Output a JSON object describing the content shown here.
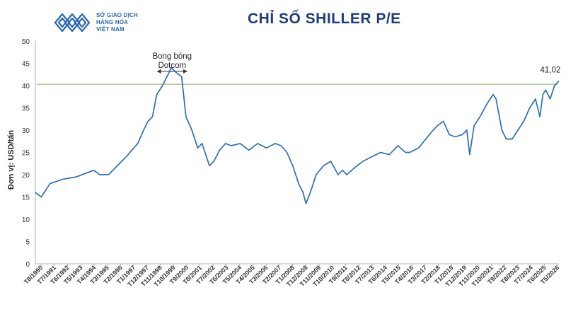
{
  "logo": {
    "line1": "SỞ GIAO DỊCH",
    "line2": "HÀNG HÓA",
    "line3": "VIỆT NAM"
  },
  "colors": {
    "line": "#2e6fb5",
    "reference": "#9dbb7a",
    "title": "#1f3d7a",
    "logo": "#2a67b1"
  },
  "chart_data": {
    "type": "line",
    "title": "CHỈ SỐ SHILLER P/E",
    "ylabel": "Đơn vị: USD/tấn",
    "xlabel": "",
    "ylim": [
      0,
      50
    ],
    "yticks": [
      0,
      5,
      10,
      15,
      20,
      25,
      30,
      35,
      40,
      45,
      50
    ],
    "grid": false,
    "x_tick_labels": [
      "T8/1990",
      "T7/1991",
      "T6/1992",
      "T5/1993",
      "T4/1994",
      "T3/1995",
      "T2/1996",
      "T1/1997",
      "T12/1997",
      "T11/1998",
      "T10/1999",
      "T9/2000",
      "T8/2001",
      "T7/2002",
      "T6/2003",
      "T5/2004",
      "T4/2005",
      "T3/2006",
      "T2/2007",
      "T1/2008",
      "T12/2008",
      "T11/2009",
      "T10/2010",
      "T9/2011",
      "T8/2012",
      "T7/2013",
      "T6/2014",
      "T5/2015",
      "T4/2016",
      "T3/2017",
      "T2/2018",
      "T1/2019",
      "T12/2019",
      "T11/2020",
      "T10/2021",
      "T9/2022",
      "T8/2023",
      "T7/2024",
      "T6/2025",
      "T5/2026"
    ],
    "series": [
      {
        "x": [
          1990.6,
          1991.0,
          1991.6,
          1992.5,
          1993.4,
          1994.2,
          1994.6,
          1995.0,
          1995.6,
          1996.2,
          1996.8,
          1997.2,
          1997.6,
          1998.0,
          1998.3,
          1998.6,
          1998.9,
          1999.3,
          1999.6,
          1999.9,
          2000.2,
          2000.6,
          2000.9,
          2001.3,
          2001.7,
          2002.0,
          2002.5,
          2002.8,
          2003.2,
          2003.6,
          2004.0,
          2004.6,
          2005.2,
          2005.8,
          2006.4,
          2007.0,
          2007.4,
          2007.8,
          2008.2,
          2008.6,
          2008.9,
          2009.1,
          2009.4,
          2009.8,
          2010.3,
          2010.8,
          2011.3,
          2011.6,
          2011.9,
          2012.4,
          2013.0,
          2013.6,
          2014.2,
          2014.8,
          2015.4,
          2015.9,
          2016.2,
          2016.8,
          2017.3,
          2017.8,
          2018.1,
          2018.5,
          2018.9,
          2019.3,
          2019.8,
          2020.1,
          2020.3,
          2020.6,
          2021.0,
          2021.5,
          2021.9,
          2022.1,
          2022.5,
          2022.8,
          2023.2,
          2023.6,
          2024.0,
          2024.4,
          2024.8,
          2025.1,
          2025.3,
          2025.5,
          2025.8,
          2026.1,
          2026.4
        ],
        "y": [
          16,
          15,
          18,
          19,
          19.5,
          20.5,
          21,
          20,
          20,
          22,
          24,
          25.5,
          27,
          30,
          32,
          33,
          38,
          40,
          42,
          44,
          43,
          42,
          33,
          30,
          26,
          27,
          22,
          23,
          25.5,
          27,
          26.5,
          27,
          25.5,
          27,
          26,
          27,
          26.5,
          25,
          22,
          18,
          16,
          13.5,
          16,
          20,
          22,
          23,
          20,
          21,
          20,
          21.5,
          23,
          24,
          25,
          24.5,
          26.5,
          25,
          25,
          26,
          28,
          30,
          31,
          32,
          29,
          28.5,
          29,
          30,
          24.5,
          31,
          33,
          36,
          38,
          37,
          30,
          28,
          28,
          30,
          32,
          35,
          37,
          33,
          38,
          39,
          37,
          40,
          41.02
        ]
      }
    ],
    "reference_line": {
      "value": 40.3
    },
    "annotations": [
      {
        "text_line1": "Bong bóng",
        "text_line2": "Dotcom",
        "x_start": 1998.9,
        "x_end": 2001.0,
        "y": 43.2
      },
      {
        "text": "41,02",
        "x": 2026.3,
        "y": 41.02
      }
    ]
  }
}
